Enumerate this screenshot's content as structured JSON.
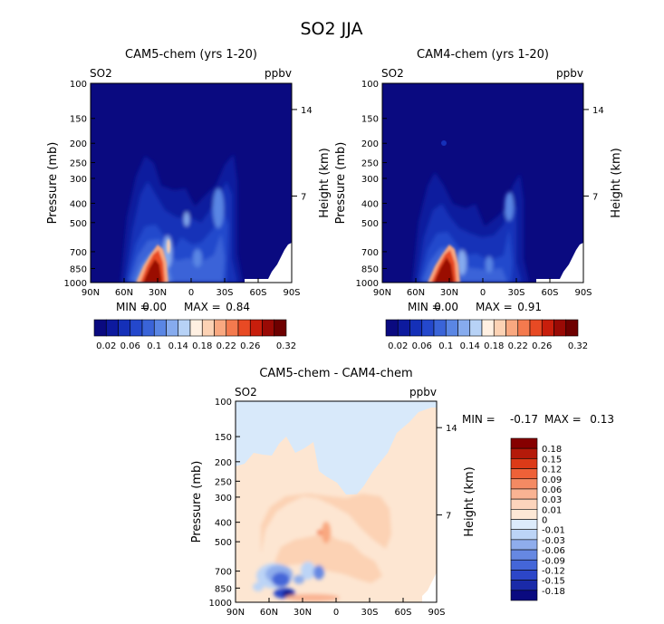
{
  "figure": {
    "title": "SO2 JJA"
  },
  "colors": {
    "seq": [
      "#0a0a80",
      "#0d1a9e",
      "#1530b8",
      "#2448cc",
      "#3a64d8",
      "#5a86e4",
      "#86abee",
      "#b7d2f6",
      "#fff0e2",
      "#fcd2b4",
      "#f9a880",
      "#f47a4e",
      "#e84a24",
      "#c81e0c",
      "#9a0a05",
      "#6e0000"
    ],
    "div": [
      "#0a0a80",
      "#1a2aa8",
      "#2c46c8",
      "#4466d8",
      "#6688e2",
      "#8fadec",
      "#bcd4f6",
      "#dcebfb",
      "#fde8d6",
      "#fcd4bc",
      "#f9b393",
      "#f48a63",
      "#ee6138",
      "#dc3a18",
      "#b41a0a",
      "#860000"
    ],
    "div_bg_top": "#d8e9fa",
    "div_bg_low": "#fde6d2"
  },
  "labels": {
    "ylabel": "Pressure (mb)",
    "ylabel_right": "Height (km)",
    "species": "SO2",
    "units": "ppbv"
  },
  "panels": {
    "cam5": {
      "title": "CAM5-chem (yrs 1-20)",
      "min_label": "MIN =",
      "min_value": "0.00",
      "max_label": "MAX =",
      "max_value": "0.84"
    },
    "cam4": {
      "title": "CAM4-chem (yrs 1-20)",
      "min_label": "MIN =",
      "min_value": "0.00",
      "max_label": "MAX =",
      "max_value": "0.91"
    },
    "diff": {
      "title": "CAM5-chem - CAM4-chem",
      "min_label": "MIN =",
      "min_value": "-0.17",
      "max_label": "MAX =",
      "max_value": "0.13"
    }
  },
  "chart_data": [
    {
      "type": "heatmap",
      "id": "cam5",
      "title": "CAM5-chem (yrs 1-20)",
      "xlabel": "",
      "ylabel": "Pressure (mb)",
      "ylabel_right": "Height (km)",
      "x_ticks": [
        "90N",
        "60N",
        "30N",
        "0",
        "30S",
        "60S",
        "90S"
      ],
      "x_values": [
        90,
        60,
        30,
        0,
        -30,
        -60,
        -90
      ],
      "y_ticks": [
        100,
        150,
        200,
        250,
        300,
        400,
        500,
        700,
        850,
        1000
      ],
      "y_ticks_right": [
        14,
        7
      ],
      "ylim": [
        1000,
        100
      ],
      "levels": [
        0.02,
        0.04,
        0.06,
        0.08,
        0.1,
        0.12,
        0.14,
        0.16,
        0.18,
        0.2,
        0.22,
        0.24,
        0.26,
        0.28,
        0.3,
        0.32
      ],
      "min": 0.0,
      "max": 0.84
    },
    {
      "type": "heatmap",
      "id": "cam4",
      "title": "CAM4-chem (yrs 1-20)",
      "xlabel": "",
      "ylabel": "Pressure (mb)",
      "ylabel_right": "Height (km)",
      "x_ticks": [
        "90N",
        "60N",
        "30N",
        "0",
        "30S",
        "60S",
        "90S"
      ],
      "x_values": [
        90,
        60,
        30,
        0,
        -30,
        -60,
        -90
      ],
      "y_ticks": [
        100,
        150,
        200,
        250,
        300,
        400,
        500,
        700,
        850,
        1000
      ],
      "y_ticks_right": [
        14,
        7
      ],
      "ylim": [
        1000,
        100
      ],
      "levels": [
        0.02,
        0.04,
        0.06,
        0.08,
        0.1,
        0.12,
        0.14,
        0.16,
        0.18,
        0.2,
        0.22,
        0.24,
        0.26,
        0.28,
        0.3,
        0.32
      ],
      "min": 0.0,
      "max": 0.91
    },
    {
      "type": "heatmap",
      "id": "diff",
      "title": "CAM5-chem - CAM4-chem",
      "xlabel": "",
      "ylabel": "Pressure (mb)",
      "ylabel_right": "Height (km)",
      "x_ticks": [
        "90N",
        "60N",
        "30N",
        "0",
        "30S",
        "60S",
        "90S"
      ],
      "x_values": [
        90,
        60,
        30,
        0,
        -30,
        -60,
        -90
      ],
      "y_ticks": [
        100,
        150,
        200,
        250,
        300,
        400,
        500,
        700,
        850,
        1000
      ],
      "y_ticks_right": [
        14,
        7
      ],
      "ylim": [
        1000,
        100
      ],
      "levels": [
        -0.18,
        -0.15,
        -0.12,
        -0.09,
        -0.06,
        -0.03,
        -0.01,
        0,
        0.01,
        0.03,
        0.06,
        0.09,
        0.12,
        0.15,
        0.18
      ],
      "min": -0.17,
      "max": 0.13
    }
  ],
  "colorbars": {
    "seq_labels": [
      "0.02",
      "0.06",
      "0.1",
      "0.14",
      "0.18",
      "0.22",
      "0.26",
      "0.32"
    ],
    "div_labels": [
      "0.18",
      "0.15",
      "0.12",
      "0.09",
      "0.06",
      "0.03",
      "0.01",
      "0",
      "-0.01",
      "-0.03",
      "-0.06",
      "-0.09",
      "-0.12",
      "-0.15",
      "-0.18"
    ]
  }
}
